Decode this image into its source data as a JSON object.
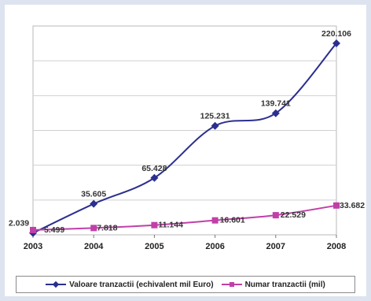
{
  "chart_data": {
    "type": "line",
    "title": "",
    "xlabel": "",
    "ylabel": "",
    "categories": [
      "2003",
      "2004",
      "2005",
      "2006",
      "2007",
      "2008"
    ],
    "ylim": [
      0,
      240
    ],
    "grid": "horizontal",
    "legend_position": "bottom",
    "series": [
      {
        "name": "Valoare tranzactii (echivalent mil Euro)",
        "color": "#2b2f8f",
        "marker": "diamond",
        "values": [
          2.039,
          35.605,
          65.428,
          125.231,
          139.741,
          220.106
        ],
        "labels": [
          "2.039",
          "35.605",
          "65.428",
          "125.231",
          "139.741",
          "220.106"
        ]
      },
      {
        "name": "Numar tranzactii (mil)",
        "color": "#c040a8",
        "marker": "square",
        "values": [
          5.499,
          7.818,
          11.144,
          16.601,
          22.529,
          33.682
        ],
        "labels": [
          "5.499",
          "7.818",
          "11.144",
          "16.601",
          "22.529",
          "33.682"
        ]
      }
    ]
  }
}
